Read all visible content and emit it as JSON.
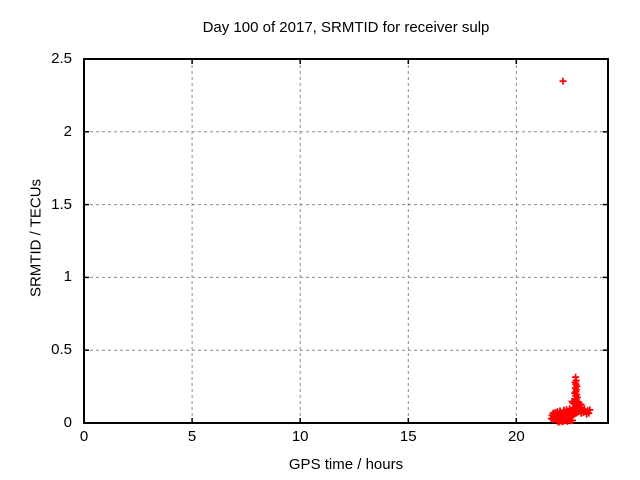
{
  "colors": {
    "background": "#ffffff",
    "text": "#000000",
    "axis": "#000000",
    "grid": "#8c8c8c",
    "marker": "#ff0000"
  },
  "chart_data": {
    "type": "scatter",
    "title": "Day 100 of 2017, SRMTID for receiver sulp",
    "xlabel": "GPS time / hours",
    "ylabel": "SRMTID / TECUs",
    "xlim": [
      0,
      24.24
    ],
    "ylim": [
      0,
      2.5
    ],
    "grid": true,
    "legend": "none",
    "marker": "plus",
    "xticks": [
      {
        "v": 0,
        "label": "0"
      },
      {
        "v": 5,
        "label": "5"
      },
      {
        "v": 10,
        "label": "10"
      },
      {
        "v": 15,
        "label": "15"
      },
      {
        "v": 20,
        "label": "20"
      }
    ],
    "yticks": [
      {
        "v": 0,
        "label": "0"
      },
      {
        "v": 0.5,
        "label": "0.5"
      },
      {
        "v": 1,
        "label": "1"
      },
      {
        "v": 1.5,
        "label": "1.5"
      },
      {
        "v": 2,
        "label": "2"
      },
      {
        "v": 2.5,
        "label": "2.5"
      }
    ],
    "series": [
      {
        "name": "SRMTID",
        "color": "#ff0000",
        "marker": "plus",
        "points": [
          [
            21.62,
            0.031
          ],
          [
            21.65,
            0.052
          ],
          [
            21.68,
            0.024
          ],
          [
            21.7,
            0.068
          ],
          [
            21.72,
            0.041
          ],
          [
            21.75,
            0.058
          ],
          [
            21.77,
            0.033
          ],
          [
            21.8,
            0.072
          ],
          [
            21.82,
            0.047
          ],
          [
            21.85,
            0.062
          ],
          [
            21.87,
            0.028
          ],
          [
            21.9,
            0.078
          ],
          [
            21.92,
            0.051
          ],
          [
            21.95,
            0.036
          ],
          [
            21.97,
            0.066
          ],
          [
            22.0,
            0.044
          ],
          [
            22.02,
            0.083
          ],
          [
            22.05,
            0.057
          ],
          [
            22.07,
            0.029
          ],
          [
            22.1,
            0.071
          ],
          [
            22.12,
            0.048
          ],
          [
            22.15,
            0.062
          ],
          [
            22.17,
            0.035
          ],
          [
            22.2,
            0.088
          ],
          [
            22.22,
            0.053
          ],
          [
            22.25,
            0.041
          ],
          [
            22.27,
            0.075
          ],
          [
            22.3,
            0.059
          ],
          [
            22.32,
            0.092
          ],
          [
            22.35,
            0.046
          ],
          [
            22.37,
            0.068
          ],
          [
            22.4,
            0.037
          ],
          [
            22.42,
            0.081
          ],
          [
            22.45,
            0.055
          ],
          [
            22.47,
            0.098
          ],
          [
            22.5,
            0.063
          ],
          [
            22.52,
            0.042
          ],
          [
            22.55,
            0.087
          ],
          [
            22.57,
            0.07
          ],
          [
            22.6,
            0.051
          ],
          [
            22.62,
            0.095
          ],
          [
            22.65,
            0.077
          ],
          [
            22.67,
            0.059
          ],
          [
            22.7,
            0.103
          ],
          [
            22.72,
            0.084
          ],
          [
            22.75,
            0.066
          ],
          [
            22.77,
            0.11
          ],
          [
            22.8,
            0.092
          ],
          [
            22.82,
            0.073
          ],
          [
            22.85,
            0.118
          ],
          [
            22.87,
            0.097
          ],
          [
            22.9,
            0.079
          ],
          [
            22.92,
            0.124
          ],
          [
            22.95,
            0.101
          ],
          [
            22.97,
            0.085
          ],
          [
            23.0,
            0.067
          ],
          [
            23.02,
            0.108
          ],
          [
            23.05,
            0.089
          ],
          [
            23.1,
            0.072
          ],
          [
            23.15,
            0.094
          ],
          [
            23.2,
            0.078
          ],
          [
            23.25,
            0.06
          ],
          [
            23.3,
            0.085
          ],
          [
            23.35,
            0.068
          ],
          [
            23.4,
            0.09
          ],
          [
            21.9,
            0.012
          ],
          [
            21.97,
            0.006
          ],
          [
            22.05,
            0.016
          ],
          [
            22.12,
            0.009
          ],
          [
            22.2,
            0.014
          ],
          [
            22.28,
            0.019
          ],
          [
            22.36,
            0.011
          ],
          [
            22.44,
            0.021
          ],
          [
            22.52,
            0.015
          ],
          [
            22.6,
            0.018
          ],
          [
            22.74,
            0.315
          ],
          [
            22.77,
            0.292
          ],
          [
            22.72,
            0.278
          ],
          [
            22.76,
            0.265
          ],
          [
            22.8,
            0.252
          ],
          [
            22.73,
            0.24
          ],
          [
            22.78,
            0.228
          ],
          [
            22.75,
            0.215
          ],
          [
            22.7,
            0.205
          ],
          [
            22.79,
            0.196
          ],
          [
            22.74,
            0.186
          ],
          [
            22.82,
            0.176
          ],
          [
            22.77,
            0.165
          ],
          [
            22.71,
            0.156
          ],
          [
            22.76,
            0.146
          ],
          [
            22.84,
            0.138
          ],
          [
            22.8,
            0.128
          ],
          [
            22.62,
            0.135
          ],
          [
            22.88,
            0.142
          ],
          [
            22.95,
            0.13
          ],
          [
            22.58,
            0.148
          ],
          [
            23.0,
            0.125
          ],
          [
            22.16,
            2.348
          ]
        ]
      }
    ]
  }
}
